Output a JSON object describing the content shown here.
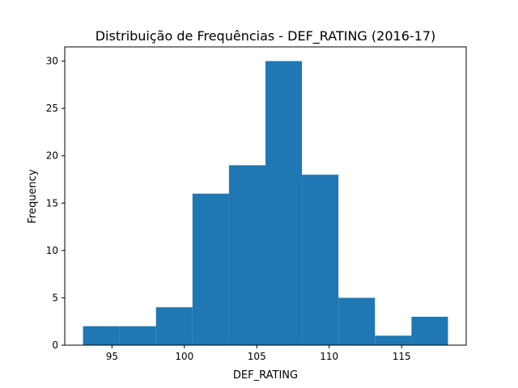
{
  "chart_data": {
    "type": "bar",
    "title": "Distribuição de Frequências - DEF_RATING (2016-17)",
    "xlabel": "DEF_RATING",
    "ylabel": "Frequency",
    "bin_edges": [
      93.0,
      95.52,
      98.04,
      100.56,
      103.08,
      105.6,
      108.12,
      110.64,
      113.16,
      115.68,
      118.2
    ],
    "values": [
      2,
      2,
      4,
      16,
      19,
      30,
      18,
      5,
      1,
      3
    ],
    "xlim": [
      91.74,
      119.46
    ],
    "ylim": [
      0,
      31.5
    ],
    "xticks": [
      95,
      100,
      105,
      110,
      115
    ],
    "yticks": [
      0,
      5,
      10,
      15,
      20,
      25,
      30
    ],
    "grid": false,
    "bar_color": "#1f77b4"
  }
}
